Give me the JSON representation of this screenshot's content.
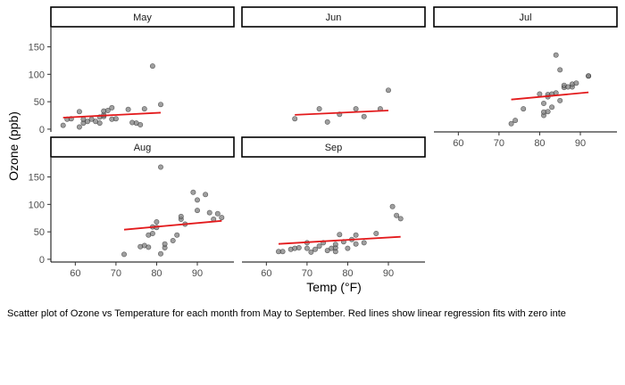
{
  "chart_data": {
    "type": "scatter",
    "xlabel": "Temp (°F)",
    "ylabel": "Ozone (ppb)",
    "xlim": [
      54,
      99
    ],
    "ylim": [
      -5,
      185
    ],
    "x_ticks": [
      60,
      70,
      80,
      90
    ],
    "y_ticks": [
      0,
      50,
      100,
      150
    ],
    "grid": false,
    "point_color": "#7f7f7f",
    "fit_color": "#e31a1c",
    "panels": [
      {
        "name": "May",
        "points": [
          [
            57,
            7
          ],
          [
            58,
            18
          ],
          [
            59,
            19
          ],
          [
            61,
            32
          ],
          [
            61,
            4
          ],
          [
            62,
            11
          ],
          [
            62,
            18
          ],
          [
            63,
            14
          ],
          [
            64,
            18
          ],
          [
            65,
            14
          ],
          [
            66,
            11
          ],
          [
            66,
            22
          ],
          [
            67,
            23
          ],
          [
            67,
            26
          ],
          [
            67,
            33
          ],
          [
            68,
            34
          ],
          [
            69,
            39
          ],
          [
            69,
            18
          ],
          [
            70,
            19
          ],
          [
            73,
            36
          ],
          [
            74,
            12
          ],
          [
            75,
            11
          ],
          [
            76,
            8
          ],
          [
            77,
            37
          ],
          [
            79,
            115
          ],
          [
            81,
            45
          ]
        ],
        "fit": [
          [
            57,
            21
          ],
          [
            81,
            30
          ]
        ]
      },
      {
        "name": "Jun",
        "points": [
          [
            67,
            19
          ],
          [
            73,
            37
          ],
          [
            75,
            13
          ],
          [
            78,
            27
          ],
          [
            82,
            37
          ],
          [
            84,
            23
          ],
          [
            88,
            37
          ],
          [
            90,
            71
          ]
        ],
        "fit": [
          [
            67,
            26
          ],
          [
            90,
            34
          ]
        ]
      },
      {
        "name": "Jul",
        "points": [
          [
            73,
            10
          ],
          [
            74,
            16
          ],
          [
            76,
            37
          ],
          [
            80,
            64
          ],
          [
            81,
            25
          ],
          [
            81,
            31
          ],
          [
            81,
            47
          ],
          [
            82,
            32
          ],
          [
            82,
            59
          ],
          [
            82,
            63
          ],
          [
            83,
            40
          ],
          [
            83,
            64
          ],
          [
            84,
            66
          ],
          [
            84,
            135
          ],
          [
            85,
            52
          ],
          [
            85,
            108
          ],
          [
            86,
            76
          ],
          [
            86,
            80
          ],
          [
            87,
            77
          ],
          [
            88,
            77
          ],
          [
            88,
            82
          ],
          [
            89,
            84
          ],
          [
            92,
            97
          ],
          [
            92,
            97
          ]
        ],
        "fit": [
          [
            73,
            54
          ],
          [
            92,
            67
          ]
        ]
      },
      {
        "name": "Aug",
        "points": [
          [
            72,
            9
          ],
          [
            76,
            23
          ],
          [
            77,
            25
          ],
          [
            78,
            22
          ],
          [
            78,
            44
          ],
          [
            79,
            47
          ],
          [
            79,
            59
          ],
          [
            80,
            58
          ],
          [
            80,
            68
          ],
          [
            81,
            10
          ],
          [
            81,
            168
          ],
          [
            82,
            21
          ],
          [
            82,
            28
          ],
          [
            84,
            34
          ],
          [
            85,
            44
          ],
          [
            86,
            73
          ],
          [
            86,
            78
          ],
          [
            87,
            64
          ],
          [
            89,
            122
          ],
          [
            90,
            89
          ],
          [
            90,
            108
          ],
          [
            92,
            118
          ],
          [
            93,
            85
          ],
          [
            94,
            73
          ],
          [
            95,
            83
          ],
          [
            96,
            76
          ]
        ],
        "fit": [
          [
            72,
            54
          ],
          [
            96,
            70
          ]
        ]
      },
      {
        "name": "Sep",
        "points": [
          [
            63,
            14
          ],
          [
            64,
            14
          ],
          [
            66,
            18
          ],
          [
            67,
            20
          ],
          [
            68,
            21
          ],
          [
            70,
            20
          ],
          [
            70,
            30
          ],
          [
            71,
            13
          ],
          [
            72,
            18
          ],
          [
            73,
            24
          ],
          [
            74,
            30
          ],
          [
            75,
            16
          ],
          [
            76,
            20
          ],
          [
            77,
            14
          ],
          [
            77,
            21
          ],
          [
            77,
            27
          ],
          [
            78,
            45
          ],
          [
            79,
            32
          ],
          [
            80,
            20
          ],
          [
            81,
            36
          ],
          [
            82,
            44
          ],
          [
            82,
            28
          ],
          [
            84,
            30
          ],
          [
            87,
            47
          ],
          [
            91,
            96
          ],
          [
            92,
            80
          ],
          [
            93,
            74
          ]
        ],
        "fit": [
          [
            63,
            28
          ],
          [
            93,
            41
          ]
        ]
      }
    ]
  },
  "caption": "Scatter plot of Ozone vs Temperature for each month from May to September. Red lines show linear regression fits with zero inte"
}
